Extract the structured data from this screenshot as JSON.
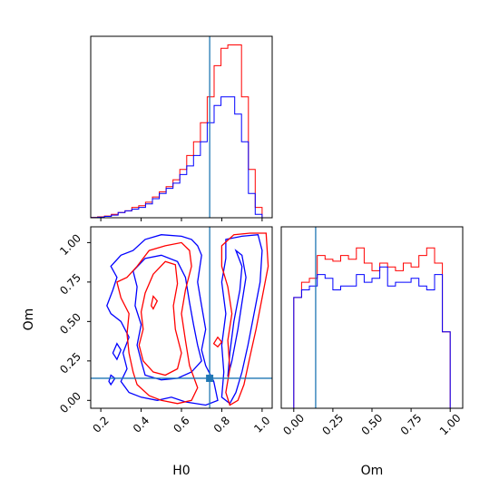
{
  "chart_data": [
    {
      "type": "histogram",
      "panel": "H0 marginal",
      "xlim": [
        0.15,
        1.05
      ],
      "bins": [
        0.15,
        0.184,
        0.218,
        0.252,
        0.286,
        0.32,
        0.354,
        0.388,
        0.422,
        0.456,
        0.49,
        0.524,
        0.558,
        0.592,
        0.626,
        0.66,
        0.694,
        0.728,
        0.762,
        0.796,
        0.83,
        0.864,
        0.898,
        0.932,
        0.966,
        1.0,
        1.05
      ],
      "series": [
        {
          "color": "#ff0000",
          "counts": [
            0.2,
            0.5,
            1,
            2,
            3,
            4,
            6,
            7,
            9,
            12,
            15,
            18,
            22,
            28,
            36,
            44,
            55,
            70,
            88,
            98,
            100,
            100,
            70,
            28,
            6,
            0
          ]
        },
        {
          "color": "#0000ff",
          "counts": [
            0.1,
            0.3,
            0.8,
            1.5,
            3,
            4,
            5,
            6,
            8,
            11,
            14,
            17,
            20,
            25,
            30,
            36,
            44,
            55,
            65,
            70,
            70,
            60,
            44,
            14,
            2,
            0
          ]
        }
      ],
      "truth_line": {
        "x": 0.74,
        "color": "#1f77b4"
      },
      "ticks": []
    },
    {
      "type": "contour",
      "panel": "H0 vs Om",
      "xlim": [
        0.15,
        1.05
      ],
      "ylim": [
        -0.05,
        1.1
      ],
      "xticks": [
        0.2,
        0.4,
        0.6,
        0.8,
        1.0
      ],
      "xtick_labels": [
        "0.2",
        "0.4",
        "0.6",
        "0.8",
        "1.0"
      ],
      "yticks": [
        0.0,
        0.25,
        0.5,
        0.75,
        1.0
      ],
      "ytick_labels": [
        "0.00",
        "0.25",
        "0.50",
        "0.75",
        "1.00"
      ],
      "xlabel": "H0",
      "ylabel": "Om",
      "truth_point": {
        "x": 0.74,
        "y": 0.14
      },
      "truth_line_color": "#1f77b4",
      "series": [
        {
          "color": "#0000ff",
          "contours": [
            [
              [
                0.23,
                0.6
              ],
              [
                0.26,
                0.7
              ],
              [
                0.28,
                0.78
              ],
              [
                0.25,
                0.85
              ],
              [
                0.3,
                0.92
              ],
              [
                0.36,
                0.95
              ],
              [
                0.42,
                1.02
              ],
              [
                0.5,
                1.05
              ],
              [
                0.6,
                1.04
              ],
              [
                0.65,
                1.02
              ],
              [
                0.68,
                0.98
              ],
              [
                0.7,
                0.92
              ],
              [
                0.68,
                0.75
              ],
              [
                0.7,
                0.6
              ],
              [
                0.72,
                0.45
              ],
              [
                0.7,
                0.32
              ],
              [
                0.72,
                0.22
              ],
              [
                0.76,
                0.12
              ],
              [
                0.78,
                0.0
              ],
              [
                0.72,
                -0.03
              ],
              [
                0.62,
                -0.01
              ],
              [
                0.55,
                0.02
              ],
              [
                0.48,
                0.0
              ],
              [
                0.4,
                0.02
              ],
              [
                0.34,
                0.05
              ],
              [
                0.3,
                0.12
              ],
              [
                0.33,
                0.2
              ],
              [
                0.31,
                0.3
              ],
              [
                0.34,
                0.4
              ],
              [
                0.3,
                0.5
              ],
              [
                0.25,
                0.55
              ],
              [
                0.23,
                0.6
              ]
            ],
            [
              [
                0.38,
                0.35
              ],
              [
                0.4,
                0.48
              ],
              [
                0.37,
                0.6
              ],
              [
                0.38,
                0.72
              ],
              [
                0.36,
                0.82
              ],
              [
                0.42,
                0.9
              ],
              [
                0.5,
                0.92
              ],
              [
                0.58,
                0.88
              ],
              [
                0.62,
                0.78
              ],
              [
                0.64,
                0.62
              ],
              [
                0.66,
                0.48
              ],
              [
                0.68,
                0.35
              ],
              [
                0.7,
                0.25
              ],
              [
                0.65,
                0.18
              ],
              [
                0.58,
                0.14
              ],
              [
                0.5,
                0.13
              ],
              [
                0.42,
                0.16
              ],
              [
                0.4,
                0.25
              ],
              [
                0.38,
                0.35
              ]
            ],
            [
              [
                0.82,
                1.02
              ],
              [
                0.9,
                1.04
              ],
              [
                0.98,
                1.05
              ],
              [
                1.0,
                0.95
              ],
              [
                0.99,
                0.75
              ],
              [
                0.96,
                0.55
              ],
              [
                0.93,
                0.35
              ],
              [
                0.9,
                0.18
              ],
              [
                0.87,
                0.05
              ],
              [
                0.84,
                -0.02
              ],
              [
                0.8,
                0.02
              ],
              [
                0.81,
                0.18
              ],
              [
                0.8,
                0.35
              ],
              [
                0.82,
                0.55
              ],
              [
                0.8,
                0.75
              ],
              [
                0.82,
                0.9
              ],
              [
                0.82,
                1.02
              ]
            ],
            [
              [
                0.87,
                0.95
              ],
              [
                0.9,
                0.85
              ],
              [
                0.89,
                0.7
              ],
              [
                0.86,
                0.5
              ],
              [
                0.84,
                0.3
              ],
              [
                0.83,
                0.15
              ],
              [
                0.85,
                0.25
              ],
              [
                0.88,
                0.45
              ],
              [
                0.9,
                0.62
              ],
              [
                0.92,
                0.78
              ],
              [
                0.9,
                0.92
              ],
              [
                0.87,
                0.95
              ]
            ],
            [
              [
                0.26,
                0.3
              ],
              [
                0.28,
                0.36
              ],
              [
                0.3,
                0.32
              ],
              [
                0.28,
                0.26
              ],
              [
                0.26,
                0.3
              ]
            ],
            [
              [
                0.24,
                0.12
              ],
              [
                0.25,
                0.16
              ],
              [
                0.27,
                0.14
              ],
              [
                0.25,
                0.1
              ],
              [
                0.24,
                0.12
              ]
            ]
          ]
        },
        {
          "color": "#ff0000",
          "contours": [
            [
              [
                0.28,
                0.75
              ],
              [
                0.33,
                0.78
              ],
              [
                0.38,
                0.85
              ],
              [
                0.44,
                0.95
              ],
              [
                0.52,
                0.98
              ],
              [
                0.6,
                1.0
              ],
              [
                0.64,
                0.95
              ],
              [
                0.65,
                0.85
              ],
              [
                0.62,
                0.7
              ],
              [
                0.6,
                0.55
              ],
              [
                0.62,
                0.38
              ],
              [
                0.64,
                0.22
              ],
              [
                0.68,
                0.08
              ],
              [
                0.65,
                0.0
              ],
              [
                0.58,
                -0.02
              ],
              [
                0.5,
                0.0
              ],
              [
                0.44,
                0.03
              ],
              [
                0.38,
                0.1
              ],
              [
                0.36,
                0.18
              ],
              [
                0.34,
                0.3
              ],
              [
                0.33,
                0.42
              ],
              [
                0.34,
                0.55
              ],
              [
                0.3,
                0.65
              ],
              [
                0.28,
                0.75
              ]
            ],
            [
              [
                0.39,
                0.35
              ],
              [
                0.41,
                0.45
              ],
              [
                0.4,
                0.56
              ],
              [
                0.42,
                0.68
              ],
              [
                0.46,
                0.8
              ],
              [
                0.52,
                0.88
              ],
              [
                0.57,
                0.86
              ],
              [
                0.58,
                0.74
              ],
              [
                0.56,
                0.6
              ],
              [
                0.57,
                0.45
              ],
              [
                0.6,
                0.3
              ],
              [
                0.58,
                0.2
              ],
              [
                0.52,
                0.16
              ],
              [
                0.46,
                0.18
              ],
              [
                0.41,
                0.25
              ],
              [
                0.39,
                0.35
              ]
            ],
            [
              [
                0.8,
                0.98
              ],
              [
                0.86,
                1.05
              ],
              [
                0.94,
                1.06
              ],
              [
                1.02,
                1.06
              ],
              [
                1.03,
                0.85
              ],
              [
                1.0,
                0.65
              ],
              [
                0.97,
                0.45
              ],
              [
                0.94,
                0.28
              ],
              [
                0.91,
                0.1
              ],
              [
                0.88,
                0.0
              ],
              [
                0.84,
                -0.03
              ],
              [
                0.82,
                0.05
              ],
              [
                0.84,
                0.2
              ],
              [
                0.83,
                0.38
              ],
              [
                0.85,
                0.55
              ],
              [
                0.83,
                0.72
              ],
              [
                0.8,
                0.85
              ],
              [
                0.8,
                0.98
              ]
            ],
            [
              [
                0.45,
                0.6
              ],
              [
                0.46,
                0.66
              ],
              [
                0.48,
                0.63
              ],
              [
                0.46,
                0.58
              ],
              [
                0.45,
                0.6
              ]
            ],
            [
              [
                0.76,
                0.36
              ],
              [
                0.78,
                0.4
              ],
              [
                0.8,
                0.37
              ],
              [
                0.78,
                0.34
              ],
              [
                0.76,
                0.36
              ]
            ]
          ]
        }
      ]
    },
    {
      "type": "histogram",
      "panel": "Om marginal",
      "xlim": [
        -0.08,
        1.08
      ],
      "bins": [
        -0.08,
        0.0,
        0.05,
        0.1,
        0.15,
        0.2,
        0.25,
        0.3,
        0.35,
        0.4,
        0.45,
        0.5,
        0.55,
        0.6,
        0.65,
        0.7,
        0.75,
        0.8,
        0.85,
        0.9,
        0.95,
        1.0,
        1.08
      ],
      "series": [
        {
          "color": "#ff0000",
          "counts": [
            0,
            58,
            66,
            68,
            80,
            78,
            77,
            80,
            78,
            84,
            76,
            72,
            76,
            74,
            72,
            76,
            74,
            80,
            84,
            76,
            40,
            0
          ]
        },
        {
          "color": "#0000ff",
          "counts": [
            0,
            58,
            62,
            64,
            70,
            68,
            62,
            64,
            64,
            70,
            66,
            68,
            74,
            64,
            66,
            66,
            68,
            64,
            62,
            70,
            40,
            0
          ]
        }
      ],
      "truth_line": {
        "x": 0.14,
        "color": "#1f77b4"
      },
      "xticks": [
        0.0,
        0.25,
        0.5,
        0.75,
        1.0
      ],
      "xtick_labels": [
        "0.00",
        "0.25",
        "0.50",
        "0.75",
        "1.00"
      ],
      "xlabel": "Om"
    }
  ]
}
